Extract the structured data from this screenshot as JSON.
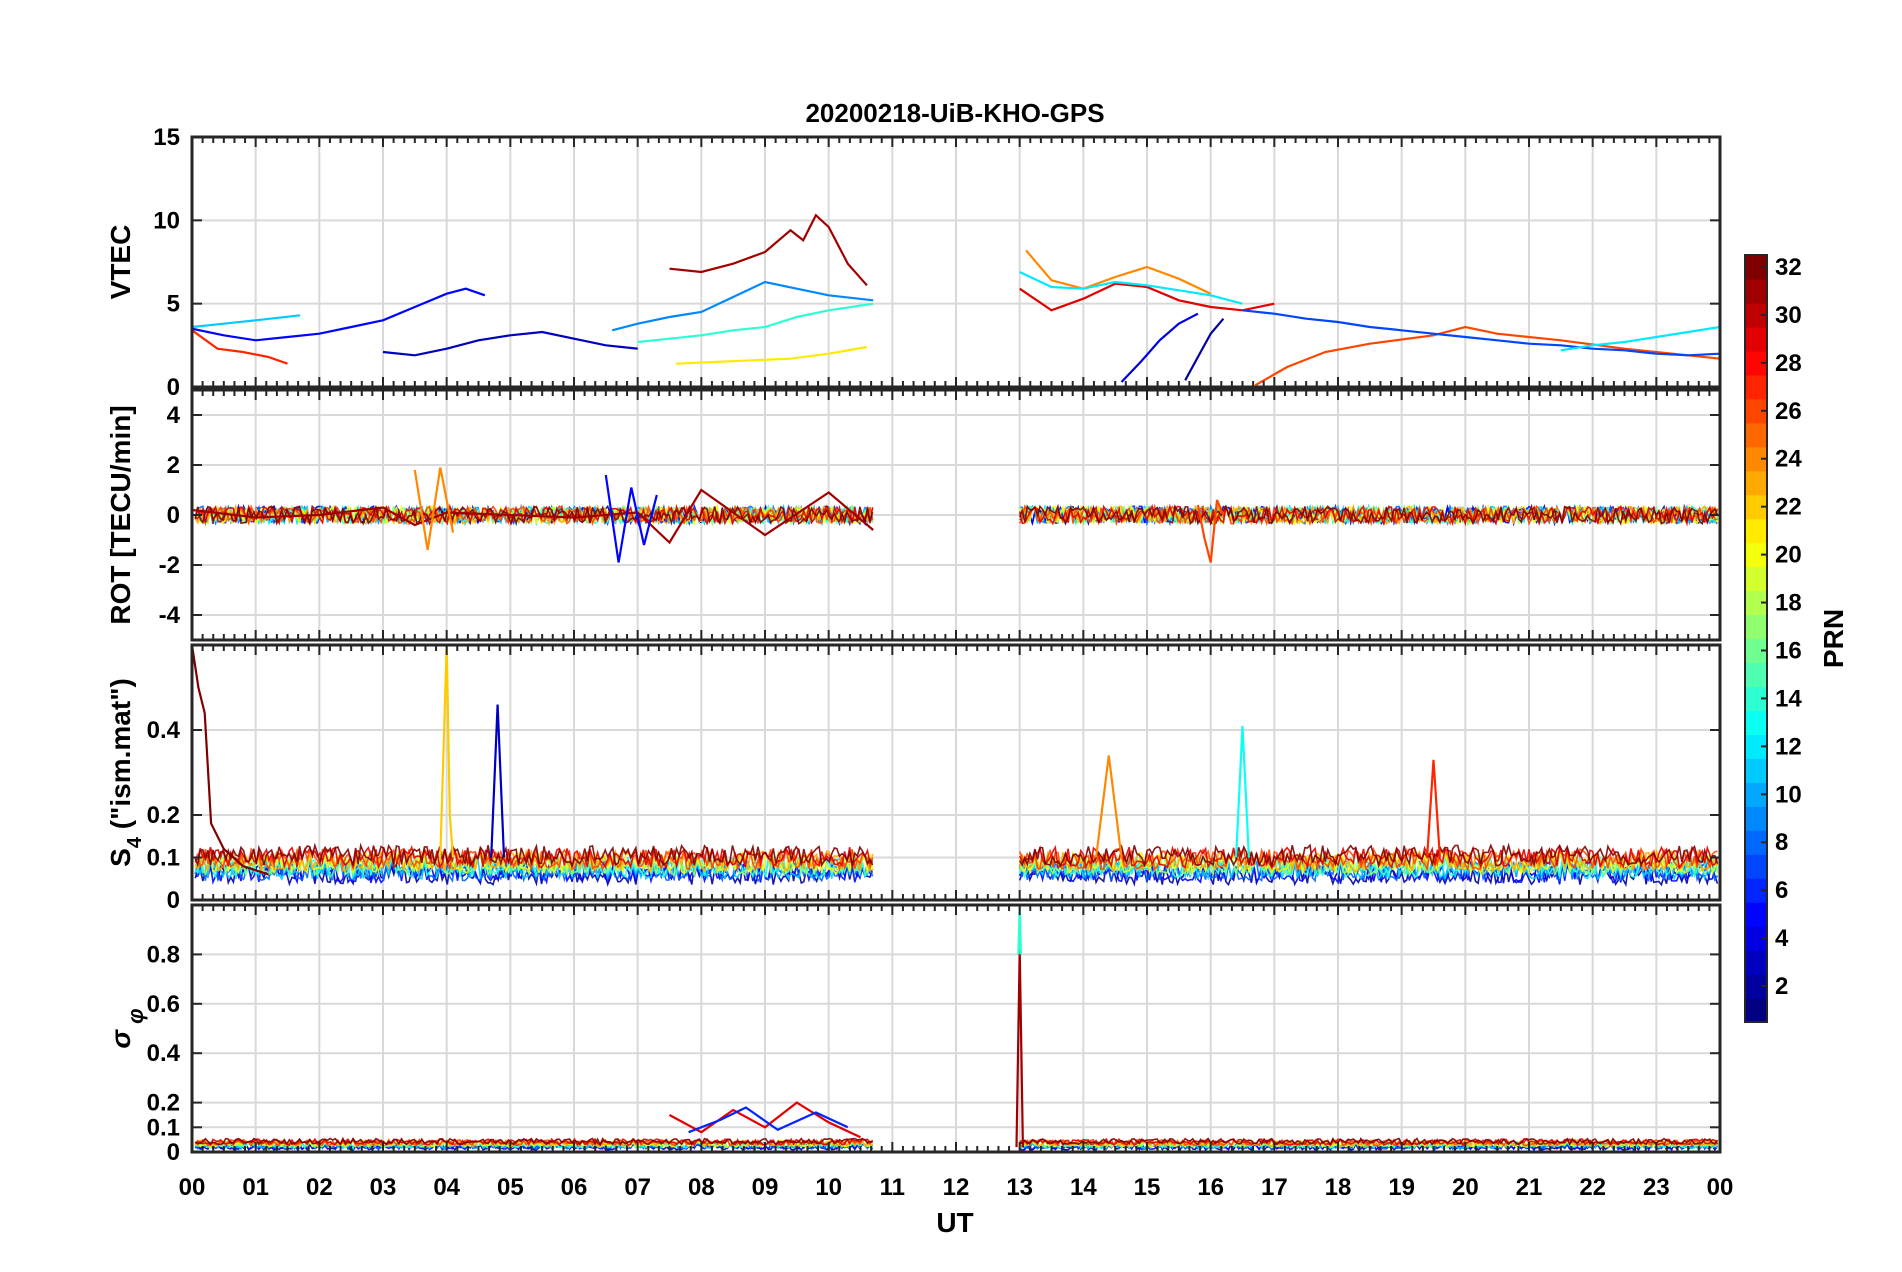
{
  "chart_data": {
    "type": "line",
    "title": "20200218-UiB-KHO-GPS",
    "xlabel": "UT",
    "x_ticks": [
      "00",
      "01",
      "02",
      "03",
      "04",
      "05",
      "06",
      "07",
      "08",
      "09",
      "10",
      "11",
      "12",
      "13",
      "14",
      "15",
      "16",
      "17",
      "18",
      "19",
      "20",
      "21",
      "22",
      "23",
      "00"
    ],
    "xlim": [
      0,
      24
    ],
    "data_gap": [
      10.7,
      13.0
    ],
    "panels": [
      {
        "ylabel": "VTEC",
        "ylim": [
          0,
          15
        ],
        "yticks": [
          "0",
          "5",
          "10",
          "15"
        ],
        "series": [
          {
            "prn": 31,
            "x": [
              7.5,
              8.0,
              8.5,
              9.0,
              9.4,
              9.6,
              9.8,
              10.0,
              10.3,
              10.6
            ],
            "y": [
              7.1,
              6.9,
              7.4,
              8.1,
              9.4,
              8.8,
              10.3,
              9.6,
              7.4,
              6.1
            ]
          },
          {
            "prn": 27,
            "x": [
              0.0,
              0.4,
              0.8,
              1.2,
              1.5
            ],
            "y": [
              3.4,
              2.3,
              2.1,
              1.8,
              1.4
            ]
          },
          {
            "prn": 5,
            "x": [
              0.0,
              0.5,
              1.0,
              1.5,
              2.0,
              2.5,
              3.0,
              3.5,
              4.0,
              4.3,
              4.6
            ],
            "y": [
              3.5,
              3.1,
              2.8,
              3.0,
              3.2,
              3.6,
              4.0,
              4.8,
              5.6,
              5.9,
              5.5
            ]
          },
          {
            "prn": 11,
            "x": [
              0.0,
              0.5,
              1.0,
              1.7
            ],
            "y": [
              3.6,
              3.8,
              4.0,
              4.3
            ]
          },
          {
            "prn": 3,
            "x": [
              3.0,
              3.5,
              4.0,
              4.5,
              5.0,
              5.5,
              6.0,
              6.5,
              7.0
            ],
            "y": [
              2.1,
              1.9,
              2.3,
              2.8,
              3.1,
              3.3,
              2.9,
              2.5,
              2.3
            ]
          },
          {
            "prn": 9,
            "x": [
              6.6,
              7.0,
              7.5,
              8.0,
              8.5,
              9.0,
              9.5,
              10.0,
              10.7
            ],
            "y": [
              3.4,
              3.8,
              4.2,
              4.5,
              5.4,
              6.3,
              5.9,
              5.5,
              5.2
            ]
          },
          {
            "prn": 14,
            "x": [
              7.0,
              7.5,
              8.0,
              8.5,
              9.0,
              9.5,
              10.0,
              10.7
            ],
            "y": [
              2.7,
              2.9,
              3.1,
              3.4,
              3.6,
              4.2,
              4.6,
              5.0
            ]
          },
          {
            "prn": 21,
            "x": [
              7.6,
              8.2,
              8.8,
              9.4,
              10.0,
              10.6
            ],
            "y": [
              1.4,
              1.5,
              1.6,
              1.7,
              2.0,
              2.4
            ]
          },
          {
            "prn": 29,
            "x": [
              13.0,
              13.5,
              14.0,
              14.5,
              15.0,
              15.5,
              16.0,
              16.5,
              17.0
            ],
            "y": [
              5.9,
              4.6,
              5.3,
              6.2,
              6.0,
              5.2,
              4.8,
              4.6,
              5.0
            ]
          },
          {
            "prn": 24,
            "x": [
              13.1,
              13.5,
              14.0,
              14.5,
              15.0,
              15.5,
              16.0
            ],
            "y": [
              8.2,
              6.4,
              5.9,
              6.6,
              7.2,
              6.5,
              5.6
            ]
          },
          {
            "prn": 12,
            "x": [
              13.0,
              13.5,
              14.0,
              14.5,
              15.0,
              15.5,
              16.0,
              16.5
            ],
            "y": [
              6.9,
              6.0,
              5.9,
              6.3,
              6.1,
              5.8,
              5.5,
              5.0
            ]
          },
          {
            "prn": 26,
            "x": [
              16.7,
              17.2,
              17.8,
              18.5,
              19.5,
              20.0,
              20.5,
              21.5,
              22.5,
              23.5,
              24.0
            ],
            "y": [
              0.1,
              1.2,
              2.1,
              2.6,
              3.1,
              3.6,
              3.2,
              2.8,
              2.3,
              1.9,
              1.7
            ]
          },
          {
            "prn": 4,
            "x": [
              14.6,
              14.9,
              15.2,
              15.5,
              15.8
            ],
            "y": [
              0.3,
              1.5,
              2.8,
              3.8,
              4.4
            ]
          },
          {
            "prn": 2,
            "x": [
              15.6,
              15.8,
              16.0,
              16.2
            ],
            "y": [
              0.4,
              1.8,
              3.2,
              4.1
            ]
          },
          {
            "prn": 7,
            "x": [
              16.5,
              17.0,
              17.5,
              18.0,
              18.5,
              19.0,
              19.5,
              20.0,
              20.5,
              21.0,
              21.5,
              22.0,
              22.5,
              23.0,
              23.5,
              24.0
            ],
            "y": [
              4.6,
              4.4,
              4.1,
              3.9,
              3.6,
              3.4,
              3.2,
              3.0,
              2.8,
              2.6,
              2.5,
              2.3,
              2.2,
              2.0,
              1.9,
              2.0
            ]
          },
          {
            "prn": 12,
            "x": [
              21.5,
              22.0,
              22.5,
              23.0,
              23.5,
              24.0
            ],
            "y": [
              2.2,
              2.5,
              2.7,
              3.0,
              3.3,
              3.6
            ]
          }
        ]
      },
      {
        "ylabel": "ROT [TECU/min]",
        "ylim": [
          -5,
          5
        ],
        "yticks": [
          "-4",
          "-2",
          "0",
          "2",
          "4"
        ],
        "series": [
          {
            "prn": 31,
            "x": [
              0.0,
              1.0,
              2.0,
              3.0,
              3.5,
              4.0,
              5.0,
              6.0,
              7.0,
              7.5,
              8.0,
              9.0,
              10.0,
              10.7
            ],
            "y": [
              0.2,
              -0.1,
              0.0,
              0.3,
              -0.4,
              0.1,
              0.0,
              -0.1,
              0.1,
              -1.1,
              1.0,
              -0.8,
              0.9,
              -0.6
            ]
          },
          {
            "prn": 5,
            "x": [
              6.5,
              6.7,
              6.9,
              7.1,
              7.3
            ],
            "y": [
              1.6,
              -1.9,
              1.1,
              -1.2,
              0.8
            ]
          },
          {
            "prn": 26,
            "x": [
              15.8,
              15.9,
              16.0,
              16.1,
              16.2
            ],
            "y": [
              0.4,
              -0.9,
              -1.9,
              0.6,
              0.0
            ]
          },
          {
            "prn": 24,
            "x": [
              3.5,
              3.7,
              3.9,
              4.1
            ],
            "y": [
              1.8,
              -1.4,
              1.9,
              -0.7
            ]
          }
        ]
      },
      {
        "ylabel": "S4 (\"ism.mat\")",
        "ylim": [
          0,
          0.6
        ],
        "yticks": [
          "0",
          "0.1",
          "0.2",
          "0.4"
        ],
        "series": [
          {
            "prn": 32,
            "x": [
              0.0,
              0.1,
              0.2,
              0.3,
              0.5,
              0.8,
              1.2
            ],
            "y": [
              0.6,
              0.5,
              0.44,
              0.18,
              0.12,
              0.08,
              0.06
            ]
          },
          {
            "prn": 22,
            "x": [
              3.9,
              4.0,
              4.05,
              4.1
            ],
            "y": [
              0.1,
              0.6,
              0.2,
              0.1
            ]
          },
          {
            "prn": 3,
            "x": [
              4.7,
              4.8,
              4.9
            ],
            "y": [
              0.1,
              0.46,
              0.1
            ]
          },
          {
            "prn": 13,
            "x": [
              16.4,
              16.5,
              16.6
            ],
            "y": [
              0.1,
              0.41,
              0.1
            ]
          },
          {
            "prn": 27,
            "x": [
              19.4,
              19.5,
              19.6
            ],
            "y": [
              0.1,
              0.33,
              0.1
            ]
          },
          {
            "prn": 24,
            "x": [
              14.2,
              14.4,
              14.6
            ],
            "y": [
              0.1,
              0.34,
              0.1
            ]
          }
        ]
      },
      {
        "ylabel": "σ φ",
        "ylim": [
          0,
          1
        ],
        "yticks": [
          "0",
          "0.1",
          "0.2",
          "0.4",
          "0.6",
          "0.8"
        ],
        "series": [
          {
            "prn": 31,
            "x": [
              12.95,
              13.0,
              13.05
            ],
            "y": [
              0.02,
              0.82,
              0.02
            ]
          },
          {
            "prn": 14,
            "x": [
              12.98,
              13.0,
              13.02
            ],
            "y": [
              0.8,
              1.0,
              0.8
            ]
          },
          {
            "prn": 29,
            "x": [
              7.5,
              8.0,
              8.5,
              9.0,
              9.5,
              10.0,
              10.5
            ],
            "y": [
              0.15,
              0.08,
              0.17,
              0.1,
              0.2,
              0.12,
              0.06
            ]
          },
          {
            "prn": 6,
            "x": [
              7.8,
              8.3,
              8.7,
              9.2,
              9.8,
              10.3
            ],
            "y": [
              0.08,
              0.13,
              0.18,
              0.09,
              0.16,
              0.1
            ]
          }
        ]
      }
    ],
    "colorbar": {
      "label": "PRN",
      "range": [
        1,
        32
      ],
      "ticks": [
        "2",
        "4",
        "6",
        "8",
        "10",
        "12",
        "14",
        "16",
        "18",
        "20",
        "22",
        "24",
        "26",
        "28",
        "30",
        "32"
      ],
      "colormap": "jet"
    }
  }
}
